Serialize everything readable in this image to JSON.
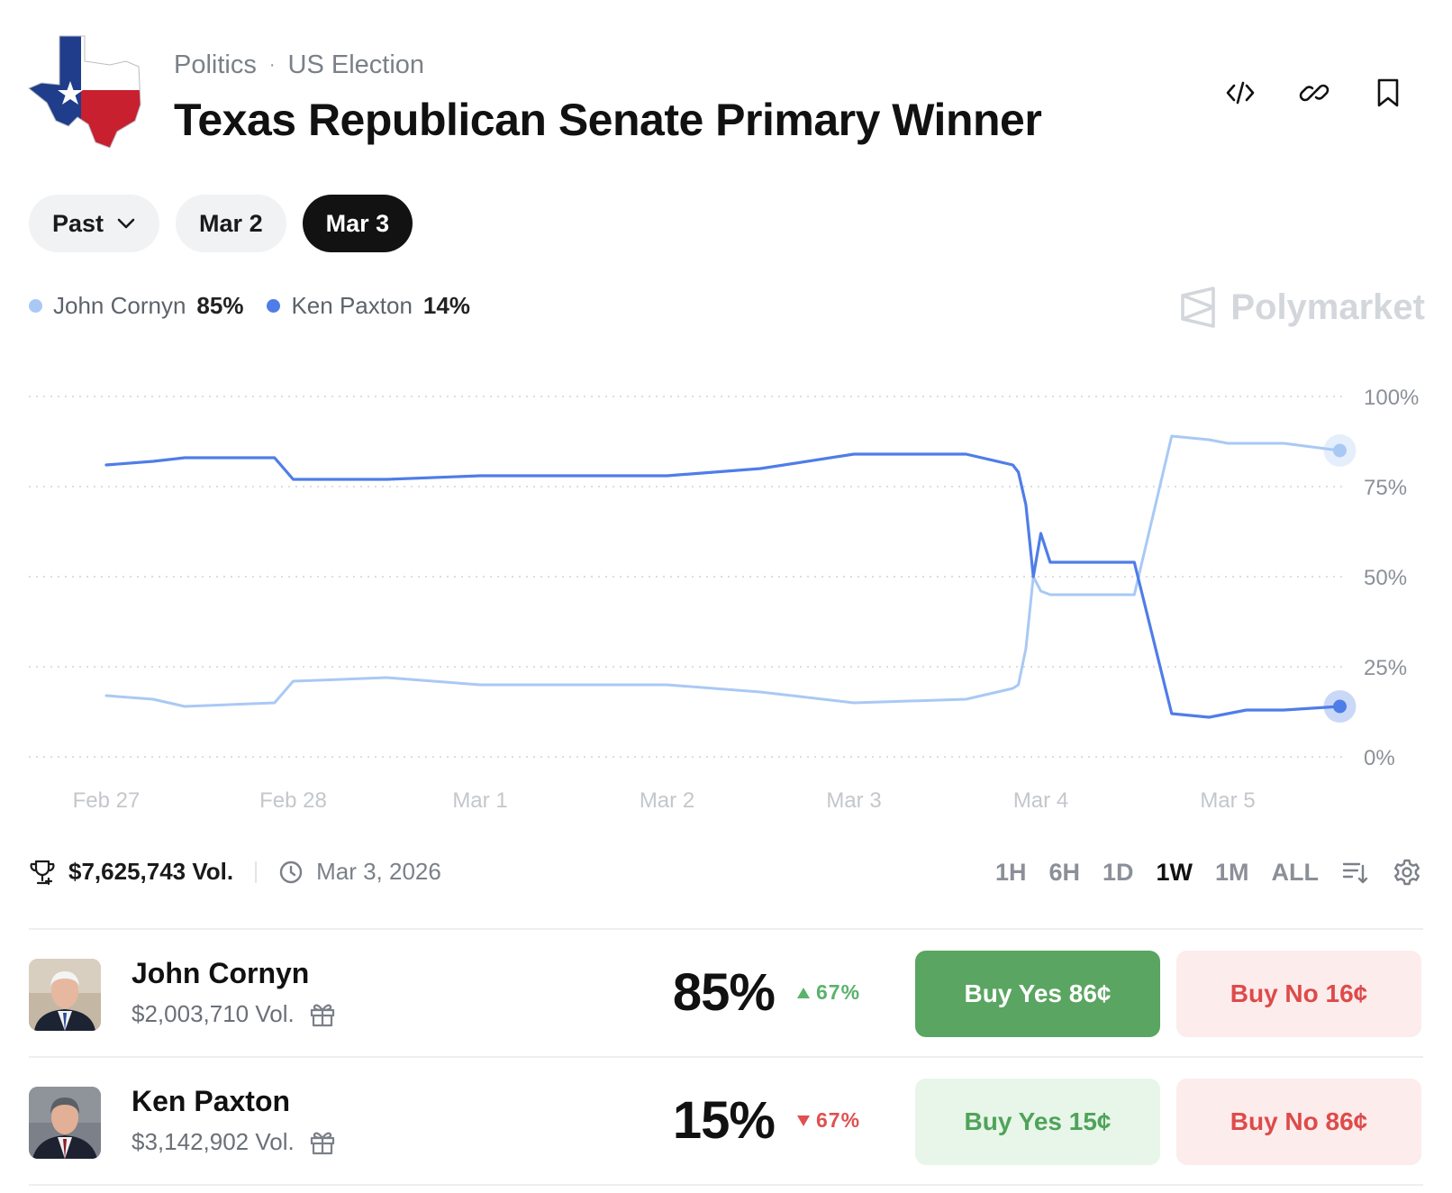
{
  "header": {
    "category": "Politics",
    "subcategory": "US Election",
    "title": "Texas Republican Senate Primary Winner",
    "icons": [
      "embed-icon",
      "link-icon",
      "bookmark-icon"
    ]
  },
  "date_tabs": [
    {
      "label": "Past",
      "has_dropdown": true,
      "active": false
    },
    {
      "label": "Mar 2",
      "active": false
    },
    {
      "label": "Mar 3",
      "active": true
    }
  ],
  "legend": [
    {
      "name": "John Cornyn",
      "value": "85%",
      "color": "#a9c9f5"
    },
    {
      "name": "Ken Paxton",
      "value": "14%",
      "color": "#4f7de8"
    }
  ],
  "brand": "Polymarket",
  "chart_data": {
    "type": "line",
    "x_ticks": [
      "Feb 27",
      "Feb 28",
      "Mar 1",
      "Mar 2",
      "Mar 3",
      "Mar 4",
      "Mar 5"
    ],
    "y_ticks": [
      "100%",
      "75%",
      "50%",
      "25%",
      "0%"
    ],
    "ylim": [
      0,
      100
    ],
    "grid": "horizontal-dotted",
    "x": [
      0,
      0.25,
      0.42,
      0.9,
      1.0,
      1.5,
      2.0,
      2.5,
      3.0,
      3.5,
      4.0,
      4.6,
      4.85,
      4.88,
      4.92,
      4.96,
      5.0,
      5.05,
      5.4,
      5.5,
      5.7,
      5.9,
      6.0,
      6.1,
      6.3,
      6.6
    ],
    "series": [
      {
        "name": "John Cornyn",
        "color": "#a9c9f5",
        "values": [
          17,
          16,
          14,
          15,
          21,
          22,
          20,
          20,
          20,
          18,
          15,
          16,
          19,
          20,
          30,
          50,
          46,
          45,
          45,
          45,
          89,
          88,
          87,
          87,
          87,
          85
        ]
      },
      {
        "name": "Ken Paxton",
        "color": "#4f7de8",
        "values": [
          81,
          82,
          83,
          83,
          77,
          77,
          78,
          78,
          78,
          80,
          84,
          84,
          81,
          79,
          70,
          50,
          62,
          54,
          54,
          54,
          12,
          11,
          12,
          13,
          13,
          14
        ]
      }
    ]
  },
  "meta": {
    "volume": "$7,625,743 Vol.",
    "date": "Mar 3, 2026"
  },
  "ranges": [
    {
      "label": "1H",
      "active": false
    },
    {
      "label": "6H",
      "active": false
    },
    {
      "label": "1D",
      "active": false
    },
    {
      "label": "1W",
      "active": true
    },
    {
      "label": "1M",
      "active": false
    },
    {
      "label": "ALL",
      "active": false
    }
  ],
  "candidates": [
    {
      "name": "John Cornyn",
      "volume": "$2,003,710 Vol.",
      "pct": "85%",
      "change": "67%",
      "direction": "up",
      "buy_yes": "Buy Yes 86¢",
      "buy_no": "Buy No 16¢",
      "yes_bg": "#5aa561",
      "yes_fg": "#ffffff",
      "no_bg": "#fcecec",
      "no_fg": "#dd4b4b"
    },
    {
      "name": "Ken Paxton",
      "volume": "$3,142,902 Vol.",
      "pct": "15%",
      "change": "67%",
      "direction": "down",
      "buy_yes": "Buy Yes 15¢",
      "buy_no": "Buy No 86¢",
      "yes_bg": "#e8f5e9",
      "yes_fg": "#4fa35a",
      "no_bg": "#fcecec",
      "no_fg": "#dd4b4b"
    }
  ]
}
